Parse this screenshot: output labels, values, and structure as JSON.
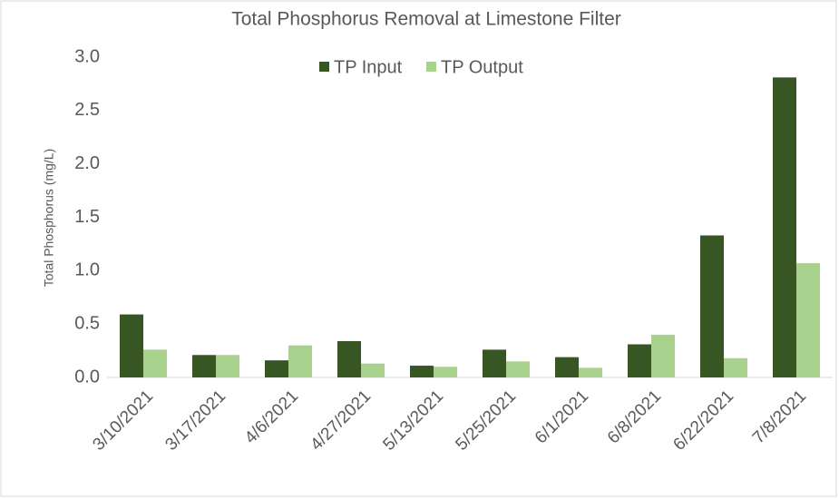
{
  "chart_data": {
    "type": "bar",
    "title": "Total Phosphorus Removal at Limestone Filter",
    "y_label": "Total Phosphorus (mg/L)",
    "categories": [
      "3/10/2021",
      "3/17/2021",
      "4/6/2021",
      "4/27/2021",
      "5/13/2021",
      "5/25/2021",
      "6/1/2021",
      "6/8/2021",
      "6/22/2021",
      "7/8/2021"
    ],
    "series": [
      {
        "name": "TP Input",
        "color": "#375623",
        "values": [
          0.59,
          0.21,
          0.16,
          0.34,
          0.11,
          0.26,
          0.19,
          0.31,
          1.33,
          2.81
        ]
      },
      {
        "name": "TP Output",
        "color": "#a9d18e",
        "values": [
          0.26,
          0.21,
          0.3,
          0.13,
          0.1,
          0.15,
          0.09,
          0.4,
          0.18,
          1.07
        ]
      }
    ],
    "ylim": [
      0,
      3
    ],
    "yticks": [
      {
        "value": 0,
        "label": "0.0"
      },
      {
        "value": 0.5,
        "label": "0.5"
      },
      {
        "value": 1,
        "label": "1.0"
      },
      {
        "value": 1.5,
        "label": "1.5"
      },
      {
        "value": 2,
        "label": "2.0"
      },
      {
        "value": 2.5,
        "label": "2.5"
      },
      {
        "value": 3,
        "label": "3.0"
      }
    ],
    "grid": false,
    "legend": "top"
  }
}
